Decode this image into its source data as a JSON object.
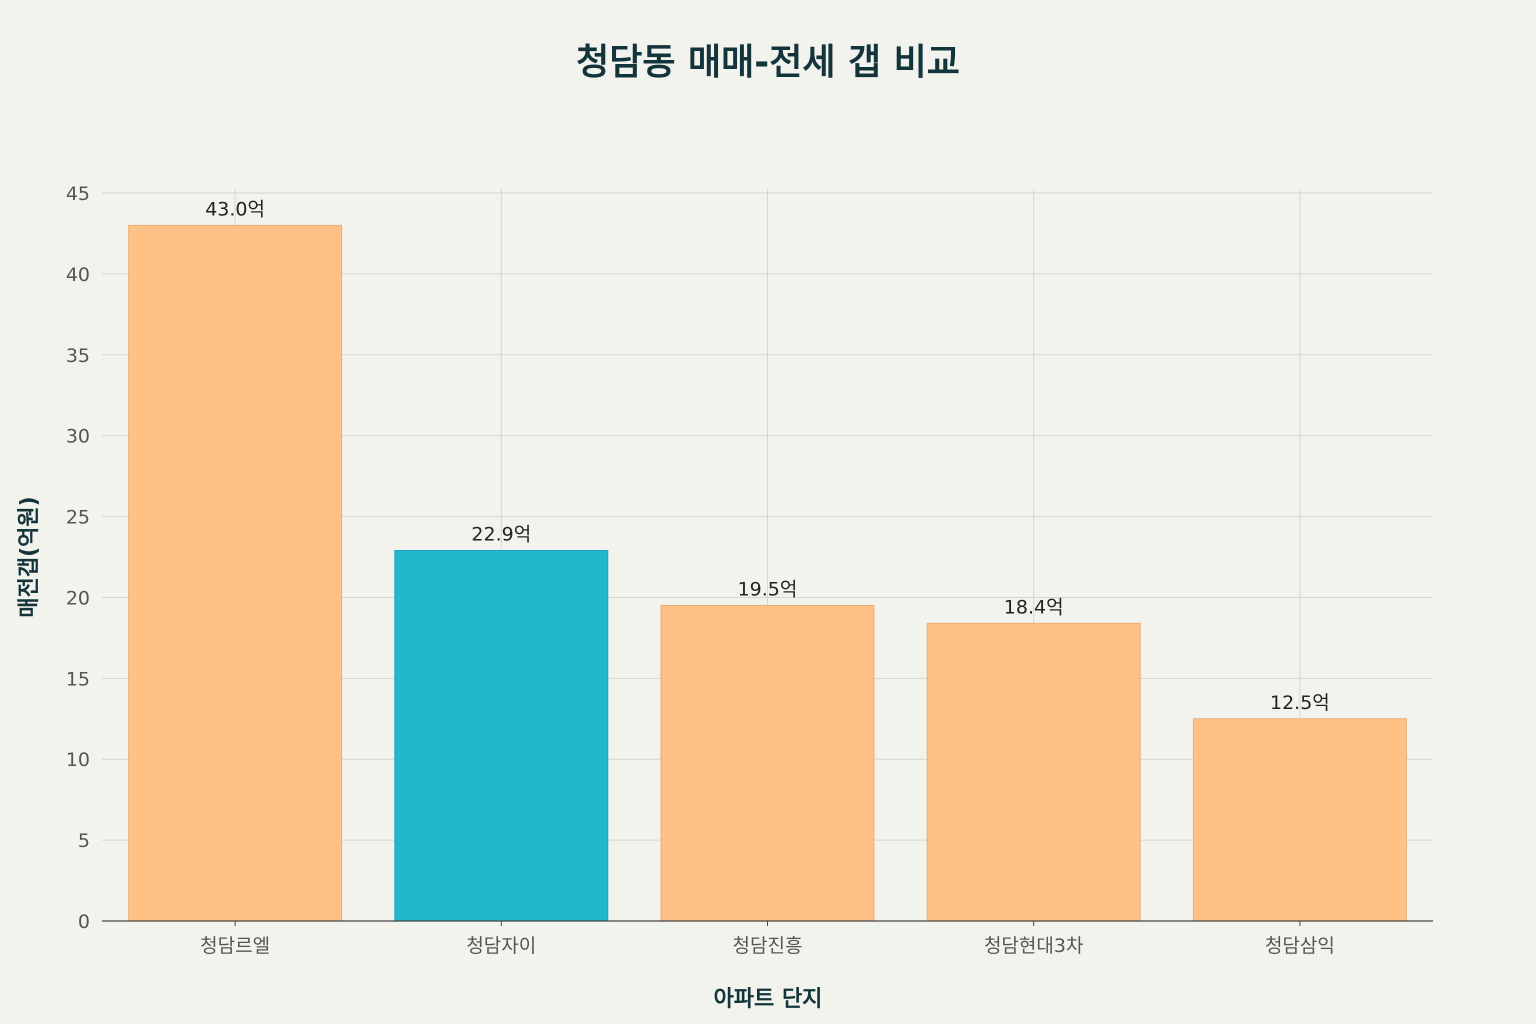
{
  "chart_data": {
    "type": "bar",
    "title": "청담동 매매-전세 갭 비교",
    "xlabel": "아파트 단지",
    "ylabel": "매전갭(억원)",
    "categories": [
      "청담르엘",
      "청담자이",
      "청담진흥",
      "청담현대3차",
      "청담삼익"
    ],
    "values": [
      43.0,
      22.9,
      19.5,
      18.4,
      12.5
    ],
    "data_labels": [
      "43.0억",
      "22.9억",
      "19.5억",
      "18.4억",
      "12.5억"
    ],
    "colors": [
      "#FFC185",
      "#1FB8CD",
      "#FFC185",
      "#FFC185",
      "#FFC185"
    ],
    "ylim": [
      0,
      45
    ],
    "yticks": [
      0,
      5,
      10,
      15,
      20,
      25,
      30,
      35,
      40,
      45
    ],
    "grid": true,
    "legend": "none"
  }
}
